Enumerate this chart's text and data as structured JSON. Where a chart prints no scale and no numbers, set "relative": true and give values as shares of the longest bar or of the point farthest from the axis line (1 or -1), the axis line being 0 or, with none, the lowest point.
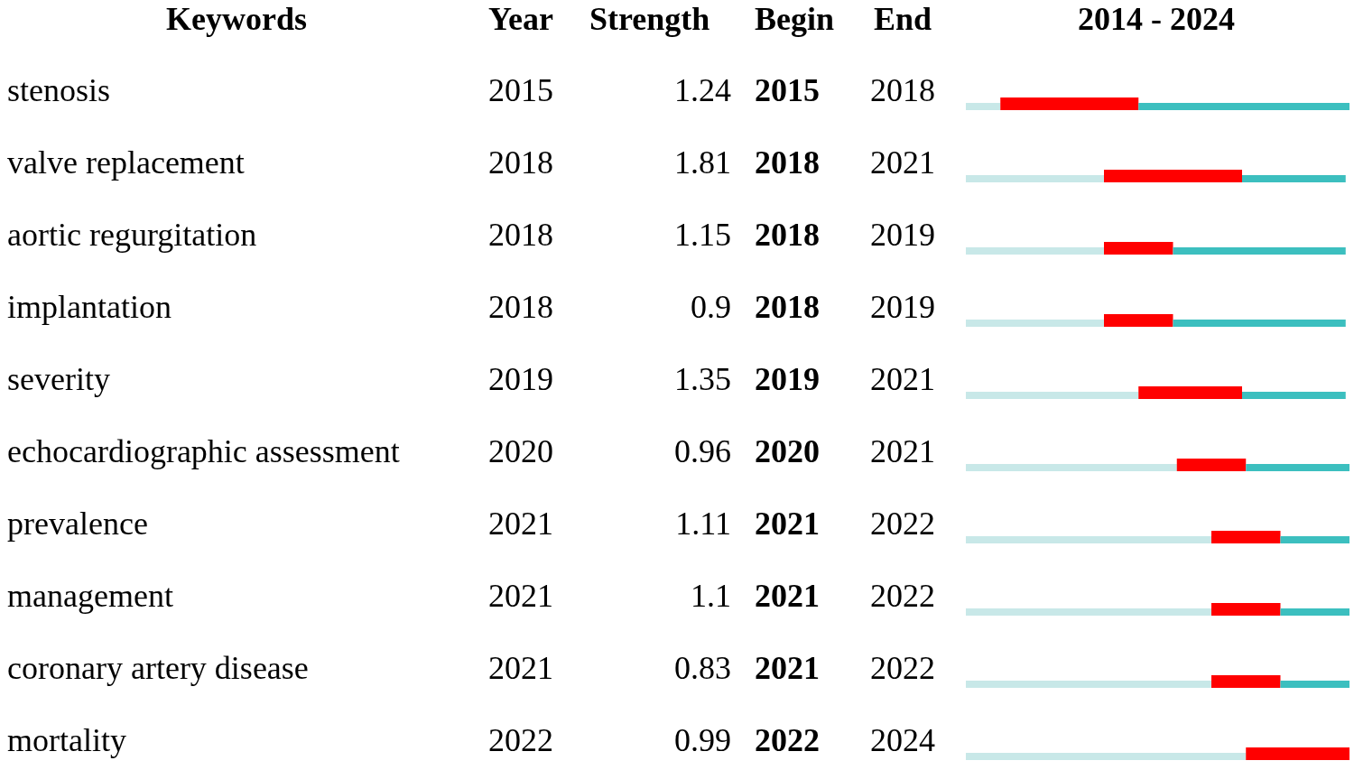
{
  "chart_data": {
    "type": "bar",
    "orientation": "horizontal",
    "stacked": true,
    "title": "2014 - 2024",
    "ylabel": "Keywords",
    "tick_labels": "y",
    "categories": [
      "stenosis",
      "valve replacement",
      "aortic regurgitation",
      "implantation",
      "severity",
      "echocardiographic assessment",
      "prevalence",
      "management",
      "coronary artery disease",
      "mortality"
    ],
    "series": [
      {
        "color": "#c8e8e8",
        "values": [
          0.09,
          0.36,
          0.36,
          0.36,
          0.45,
          0.55,
          0.64,
          0.64,
          0.64,
          0.73
        ]
      },
      {
        "color": "#ff0000",
        "values": [
          0.36,
          0.36,
          0.18,
          0.18,
          0.27,
          0.18,
          0.18,
          0.18,
          0.18,
          0.27
        ]
      },
      {
        "color": "#3cbfbf",
        "values": [
          0.55,
          0.27,
          0.45,
          0.45,
          0.27,
          0.27,
          0.18,
          0.18,
          0.18,
          0
        ]
      }
    ],
    "relative": true,
    "annotations": [
      "Year",
      "Strength",
      "Begin",
      "End",
      "2015",
      "1.24",
      "2015",
      "2018",
      "2018",
      "1.81",
      "2018",
      "2021",
      "2018",
      "1.15",
      "2018",
      "2019",
      "2018",
      "0.9",
      "2018",
      "2019",
      "2019",
      "1.35",
      "2019",
      "2021",
      "2020",
      "0.96",
      "2020",
      "2021",
      "2021",
      "1.11",
      "2021",
      "2022",
      "2021",
      "1.1",
      "2021",
      "2022",
      "2021",
      "0.83",
      "2021",
      "2022",
      "2022",
      "0.99",
      "2022",
      "2024"
    ]
  }
}
